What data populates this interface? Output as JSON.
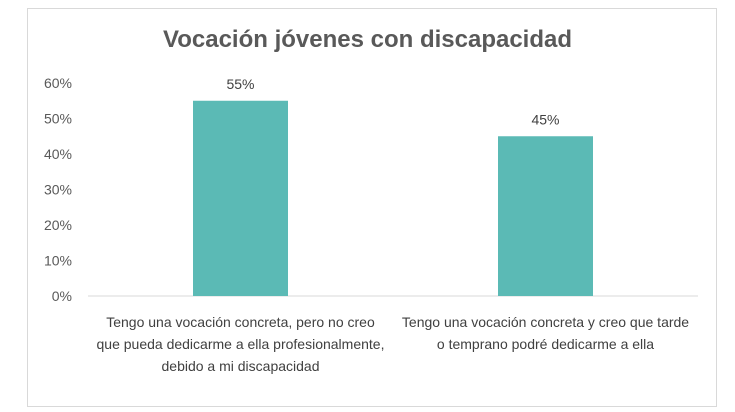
{
  "chart_data": {
    "type": "bar",
    "title": "Vocación jóvenes con discapacidad",
    "categories": [
      "Tengo una vocación concreta, pero no creo que pueda dedicarme a ella profesionalmente, debido a mi discapacidad",
      "Tengo una vocación concreta y creo que tarde o temprano podré dedicarme a ella"
    ],
    "values": [
      55,
      45
    ],
    "data_labels": [
      "55%",
      "45%"
    ],
    "ylim": [
      0,
      60
    ],
    "yticks": [
      0,
      10,
      20,
      30,
      40,
      50,
      60
    ],
    "ytick_labels": [
      "0%",
      "10%",
      "20%",
      "30%",
      "40%",
      "50%",
      "60%"
    ],
    "xlabel": "",
    "ylabel": "",
    "grid": false,
    "bar_color": "#5bbab5"
  }
}
